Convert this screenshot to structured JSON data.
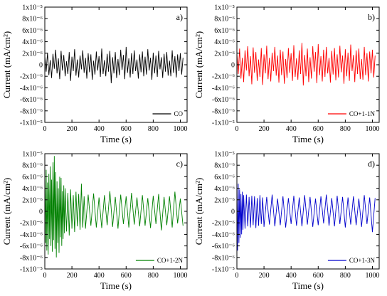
{
  "chart_data": [
    {
      "type": "line",
      "panel_label": "a)",
      "xlabel": "Time (s)",
      "ylabel": "Current (mA/cm²)",
      "xlim": [
        0,
        1050
      ],
      "ylim": [
        -1e-05,
        1e-05
      ],
      "x_ticks": [
        0,
        200,
        400,
        600,
        800,
        1000
      ],
      "x_tick_labels": [
        "0",
        "200",
        "400",
        "600",
        "800",
        "1000"
      ],
      "y_ticks": [
        -1e-05,
        -8e-06,
        -6e-06,
        -4e-06,
        -2e-06,
        0,
        2e-06,
        4e-06,
        6e-06,
        8e-06,
        1e-05
      ],
      "y_tick_labels": [
        "-1x10⁻⁵",
        "-8x10⁻⁶",
        "-6x10⁻⁶",
        "-4x10⁻⁶",
        "-2x10⁻⁶",
        "0",
        "2x10⁻⁶",
        "4x10⁻⁶",
        "6x10⁻⁶",
        "8x10⁻⁶",
        "1x10⁻⁵"
      ],
      "series": [
        {
          "name": "CO",
          "color": "#000000",
          "x": [
            0,
            10,
            20,
            30,
            40,
            50,
            60,
            70,
            80,
            90,
            100,
            110,
            120,
            130,
            140,
            150,
            160,
            170,
            180,
            190,
            200,
            210,
            220,
            230,
            240,
            250,
            260,
            270,
            280,
            290,
            300,
            310,
            320,
            330,
            340,
            350,
            360,
            370,
            380,
            390,
            400,
            410,
            420,
            430,
            440,
            450,
            460,
            470,
            480,
            490,
            500,
            510,
            520,
            530,
            540,
            550,
            560,
            570,
            580,
            590,
            600,
            610,
            620,
            630,
            640,
            650,
            660,
            670,
            680,
            690,
            700,
            710,
            720,
            730,
            740,
            750,
            760,
            770,
            780,
            790,
            800,
            810,
            820,
            830,
            840,
            850,
            860,
            870,
            880,
            890,
            900,
            910,
            920,
            930,
            940,
            950,
            960,
            970,
            980,
            990,
            1000,
            1010,
            1020
          ],
          "y": [
            1.5e-06,
            -1.2e-06,
            2.1e-06,
            -1.8e-06,
            8e-07,
            -2.3e-06,
            1.9e-06,
            -7e-07,
            2.6e-06,
            -1.5e-06,
            1.1e-06,
            -2.5e-06,
            2.4e-06,
            -1e-06,
            1.7e-06,
            -2e-06,
            6e-07,
            -1.6e-06,
            2.2e-06,
            -2.8e-06,
            1.4e-06,
            -1.1e-06,
            2.7e-06,
            -1.9e-06,
            9e-07,
            -2.2e-06,
            1.6e-06,
            -8e-07,
            2.5e-06,
            -1.4e-06,
            1.2e-06,
            -2.4e-06,
            2e-06,
            -1.3e-06,
            1.8e-06,
            -2.6e-06,
            7e-07,
            -1.7e-06,
            2.3e-06,
            -1e-06,
            1.5e-06,
            -2.1e-06,
            2.8e-06,
            -1.6e-06,
            8e-07,
            -2e-06,
            1.9e-06,
            -1.2e-06,
            2.4e-06,
            -3.2e-06,
            1.3e-06,
            -1.5e-06,
            2.2e-06,
            -2.3e-06,
            1e-06,
            -1.8e-06,
            2.6e-06,
            -9e-07,
            1.7e-06,
            -2.5e-06,
            3.1e-06,
            -1.4e-06,
            1.1e-06,
            -2.2e-06,
            2e-06,
            -1.6e-06,
            2.5e-06,
            -1.1e-06,
            9e-07,
            -2.4e-06,
            1.8e-06,
            -1.3e-06,
            2.3e-06,
            -2e-06,
            1.4e-06,
            -1.7e-06,
            2.7e-06,
            -1e-06,
            1.2e-06,
            -2.6e-06,
            2.1e-06,
            -1.5e-06,
            1.6e-06,
            -2.1e-06,
            2.4e-06,
            -8e-07,
            1.3e-06,
            -2.3e-06,
            1.9e-06,
            -1.2e-06,
            2.2e-06,
            -1.9e-06,
            7e-07,
            -2e-06,
            2.5e-06,
            -1.4e-06,
            1.5e-06,
            -2.2e-06,
            1.8e-06,
            -1.1e-06,
            2e-06,
            -1.7e-06,
            1.2e-06
          ]
        }
      ]
    },
    {
      "type": "line",
      "panel_label": "b)",
      "xlabel": "Time (s)",
      "ylabel": "Current (mA/cm²)",
      "xlim": [
        0,
        1050
      ],
      "ylim": [
        -1e-05,
        1e-05
      ],
      "x_ticks": [
        0,
        200,
        400,
        600,
        800,
        1000
      ],
      "x_tick_labels": [
        "0",
        "200",
        "400",
        "600",
        "800",
        "1000"
      ],
      "y_ticks": [
        -1e-05,
        -8e-06,
        -6e-06,
        -4e-06,
        -2e-06,
        0,
        2e-06,
        4e-06,
        6e-06,
        8e-06,
        1e-05
      ],
      "y_tick_labels": [
        "-1x10⁻⁵",
        "-8x10⁻⁶",
        "-6x10⁻⁶",
        "-4x10⁻⁶",
        "-2x10⁻⁶",
        "0",
        "2x10⁻⁶",
        "4x10⁻⁶",
        "6x10⁻⁶",
        "8x10⁻⁶",
        "1x10⁻⁵"
      ],
      "series": [
        {
          "name": "CO+1-1N",
          "color": "#ff0000",
          "x": [
            0,
            10,
            20,
            30,
            40,
            50,
            60,
            70,
            80,
            90,
            100,
            110,
            120,
            130,
            140,
            150,
            160,
            170,
            180,
            190,
            200,
            210,
            220,
            230,
            240,
            250,
            260,
            270,
            280,
            290,
            300,
            310,
            320,
            330,
            340,
            350,
            360,
            370,
            380,
            390,
            400,
            410,
            420,
            430,
            440,
            450,
            460,
            470,
            480,
            490,
            500,
            510,
            520,
            530,
            540,
            550,
            560,
            570,
            580,
            590,
            600,
            610,
            620,
            630,
            640,
            650,
            660,
            670,
            680,
            690,
            700,
            710,
            720,
            730,
            740,
            750,
            760,
            770,
            780,
            790,
            800,
            810,
            820,
            830,
            840,
            850,
            860,
            870,
            880,
            890,
            900,
            910,
            920,
            930,
            940,
            950,
            960,
            970,
            980,
            990,
            1000,
            1010,
            1020
          ],
          "y": [
            2e-06,
            -1.6e-06,
            2.8e-06,
            -2.4e-06,
            1.2e-06,
            -3e-06,
            2.5e-06,
            -1e-06,
            3.2e-06,
            -2e-06,
            1.5e-06,
            -3.4e-06,
            3e-06,
            -1.4e-06,
            2.2e-06,
            -2.8e-06,
            9e-07,
            -2.1e-06,
            2.9e-06,
            -3.5e-06,
            1.8e-06,
            -1.5e-06,
            3.3e-06,
            -2.5e-06,
            1.2e-06,
            -2.9e-06,
            2.1e-06,
            -1.1e-06,
            3.1e-06,
            -1.9e-06,
            1.6e-06,
            -3.1e-06,
            2.6e-06,
            -1.8e-06,
            2.3e-06,
            -3.3e-06,
            1e-06,
            -2.3e-06,
            2.9e-06,
            -1.4e-06,
            2e-06,
            -2.8e-06,
            3.4e-06,
            -2.1e-06,
            1.1e-06,
            -2.6e-06,
            2.5e-06,
            -1.6e-06,
            3.8e-06,
            -3.6e-06,
            1.7e-06,
            -2e-06,
            2.8e-06,
            -3e-06,
            1.3e-06,
            -2.4e-06,
            3.2e-06,
            -1.2e-06,
            2.2e-06,
            -3.2e-06,
            3.6e-06,
            -1.8e-06,
            1.5e-06,
            -2.9e-06,
            2.6e-06,
            -2.1e-06,
            3.1e-06,
            -1.5e-06,
            1.2e-06,
            -3.1e-06,
            2.4e-06,
            -1.7e-06,
            2.9e-06,
            -2.7e-06,
            1.8e-06,
            -2.2e-06,
            3.3e-06,
            -1.3e-06,
            1.6e-06,
            -3.3e-06,
            2.7e-06,
            -2e-06,
            2.1e-06,
            -2.8e-06,
            3.5e-06,
            -1.1e-06,
            1.7e-06,
            -3e-06,
            2.5e-06,
            -1.6e-06,
            2.8e-06,
            -2.5e-06,
            1e-06,
            -2.6e-06,
            3.1e-06,
            -1.8e-06,
            2e-06,
            -2.9e-06,
            2.3e-06,
            -1.5e-06,
            2.6e-06,
            -2.2e-06,
            1.6e-06
          ]
        }
      ]
    },
    {
      "type": "line",
      "panel_label": "c)",
      "xlabel": "Time (s)",
      "ylabel": "Current (mA/cm²)",
      "xlim": [
        0,
        1050
      ],
      "ylim": [
        -1e-05,
        1e-05
      ],
      "x_ticks": [
        0,
        200,
        400,
        600,
        800,
        1000
      ],
      "x_tick_labels": [
        "0",
        "200",
        "400",
        "600",
        "800",
        "1000"
      ],
      "y_ticks": [
        -1e-05,
        -8e-06,
        -6e-06,
        -4e-06,
        -2e-06,
        0,
        2e-06,
        4e-06,
        6e-06,
        8e-06,
        1e-05
      ],
      "y_tick_labels": [
        "-1x10⁻⁵",
        "-8x10⁻⁶",
        "-6x10⁻⁶",
        "-4x10⁻⁶",
        "-2x10⁻⁶",
        "0",
        "2x10⁻⁶",
        "4x10⁻⁶",
        "6x10⁻⁶",
        "8x10⁻⁶",
        "1x10⁻⁵"
      ],
      "series": [
        {
          "name": "CO+1-2N",
          "color": "#008000",
          "x": [
            0,
            5,
            10,
            15,
            20,
            25,
            30,
            35,
            40,
            45,
            50,
            55,
            60,
            65,
            70,
            75,
            80,
            85,
            90,
            95,
            100,
            105,
            110,
            115,
            120,
            125,
            130,
            135,
            140,
            145,
            150,
            160,
            170,
            180,
            190,
            200,
            210,
            220,
            230,
            240,
            250,
            260,
            270,
            280,
            290,
            300,
            320,
            340,
            360,
            380,
            400,
            420,
            440,
            460,
            480,
            500,
            520,
            540,
            560,
            580,
            600,
            620,
            640,
            660,
            680,
            700,
            720,
            740,
            760,
            780,
            800,
            820,
            840,
            860,
            880,
            900,
            920,
            940,
            960,
            980,
            1000,
            1020
          ],
          "y": [
            6e-06,
            -5.5e-06,
            7.2e-06,
            -6.8e-06,
            5e-06,
            -7.5e-06,
            6.5e-06,
            -4.8e-06,
            7.8e-06,
            -6e-06,
            5.5e-06,
            -7e-06,
            8.5e-06,
            -5e-06,
            9.6e-06,
            -6.5e-06,
            6.8e-06,
            -8e-06,
            5.2e-06,
            -5.5e-06,
            4e-06,
            -7.2e-06,
            6e-06,
            -4.5e-06,
            5.8e-06,
            -6e-06,
            3.5e-06,
            -4.8e-06,
            4.5e-06,
            -3.8e-06,
            4e-06,
            -3.5e-06,
            3.2e-06,
            -4.2e-06,
            3.8e-06,
            -3e-06,
            2.8e-06,
            -3.6e-06,
            3.4e-06,
            -2.6e-06,
            3e-06,
            -3.2e-06,
            4.8e-06,
            -2.8e-06,
            2.6e-06,
            -3e-06,
            2.9e-06,
            -2.5e-06,
            3.1e-06,
            -2.8e-06,
            2.4e-06,
            -2.9e-06,
            2.8e-06,
            -2.4e-06,
            3.5e-06,
            -2.7e-06,
            2.5e-06,
            -3e-06,
            2.9e-06,
            -2.2e-06,
            2.6e-06,
            -2.8e-06,
            3.2e-06,
            -2.3e-06,
            2.4e-06,
            -2.6e-06,
            2.8e-06,
            -2.5e-06,
            2.3e-06,
            -2.9e-06,
            2.7e-06,
            -2.2e-06,
            3e-06,
            -3.3e-06,
            2.5e-06,
            -2.4e-06,
            2.6e-06,
            -2.8e-06,
            3.4e-06,
            -2.1e-06,
            2.2e-06,
            -2.5e-06
          ]
        }
      ]
    },
    {
      "type": "line",
      "panel_label": "d)",
      "xlabel": "Time (s)",
      "ylabel": "Current (mA/cm²)",
      "xlim": [
        0,
        1050
      ],
      "ylim": [
        -1e-05,
        1e-05
      ],
      "x_ticks": [
        0,
        200,
        400,
        600,
        800,
        1000
      ],
      "x_tick_labels": [
        "0",
        "200",
        "400",
        "600",
        "800",
        "1000"
      ],
      "y_ticks": [
        -1e-05,
        -8e-06,
        -6e-06,
        -4e-06,
        -2e-06,
        0,
        2e-06,
        4e-06,
        6e-06,
        8e-06,
        1e-05
      ],
      "y_tick_labels": [
        "-1x10⁻⁵",
        "-8x10⁻⁶",
        "-6x10⁻⁶",
        "-4x10⁻⁶",
        "-2x10⁻⁶",
        "0",
        "2x10⁻⁶",
        "4x10⁻⁶",
        "6x10⁻⁶",
        "8x10⁻⁶",
        "1x10⁻⁵"
      ],
      "series": [
        {
          "name": "CO+1-3N",
          "color": "#0000cc",
          "x": [
            0,
            5,
            10,
            15,
            20,
            25,
            30,
            35,
            40,
            45,
            50,
            60,
            70,
            80,
            90,
            100,
            110,
            120,
            130,
            140,
            150,
            160,
            170,
            180,
            190,
            200,
            220,
            240,
            260,
            280,
            300,
            320,
            340,
            360,
            380,
            400,
            420,
            440,
            460,
            480,
            500,
            520,
            540,
            560,
            580,
            600,
            620,
            640,
            660,
            680,
            700,
            720,
            740,
            760,
            780,
            800,
            820,
            840,
            860,
            880,
            900,
            920,
            940,
            960,
            980,
            1000,
            1020
          ],
          "y": [
            3.5e-06,
            -6.8e-06,
            4.8e-06,
            -5.5e-06,
            3.8e-06,
            -4.6e-06,
            3e-06,
            -4e-06,
            3.4e-06,
            -3.2e-06,
            2.8e-06,
            -3e-06,
            2.9e-06,
            -2.6e-06,
            2.5e-06,
            -2.8e-06,
            2.7e-06,
            -2.4e-06,
            2.6e-06,
            -2.9e-06,
            2.3e-06,
            -2.5e-06,
            2.8e-06,
            -2.2e-06,
            2.4e-06,
            -2.7e-06,
            2.5e-06,
            -2.3e-06,
            2.9e-06,
            -2.6e-06,
            2.2e-06,
            -2.4e-06,
            2.6e-06,
            -2.8e-06,
            2.3e-06,
            -2.2e-06,
            2.7e-06,
            -2.5e-06,
            2.4e-06,
            -2.6e-06,
            2.8e-06,
            -2.3e-06,
            2.5e-06,
            -2.7e-06,
            2.2e-06,
            -2.4e-06,
            2.6e-06,
            -2.1e-06,
            2.9e-06,
            -2.5e-06,
            2.3e-06,
            -2.6e-06,
            2.7e-06,
            -2.2e-06,
            2.5e-06,
            -2.8e-06,
            2.4e-06,
            -2.3e-06,
            2.6e-06,
            -2.4e-06,
            2.2e-06,
            -2.7e-06,
            2.8e-06,
            -2.2e-06,
            2.4e-06,
            -3.6e-06,
            2.3e-06
          ]
        }
      ]
    }
  ]
}
